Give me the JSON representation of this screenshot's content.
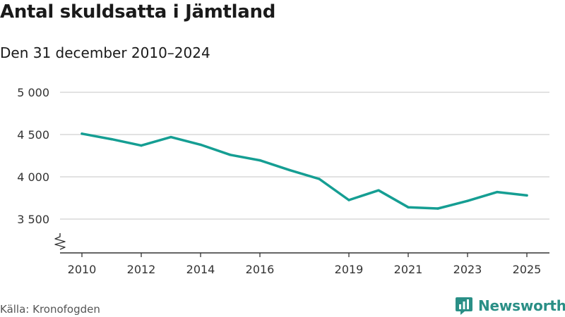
{
  "colors": {
    "line": "#159e93",
    "grid": "#d9d9d9",
    "axis": "#333333",
    "brand": "#2a8f86"
  },
  "chart_data": {
    "type": "line",
    "title": "Antal skuldsatta i Jämtland",
    "subtitle": "Den 31 december 2010–2024",
    "xlabel": "",
    "ylabel": "",
    "x": [
      2010,
      2011,
      2012,
      2013,
      2014,
      2015,
      2016,
      2017,
      2018,
      2019,
      2020,
      2021,
      2022,
      2023,
      2024,
      2025
    ],
    "values": [
      4510,
      4445,
      4370,
      4470,
      4380,
      4260,
      4195,
      4080,
      3975,
      3725,
      3840,
      3640,
      3625,
      3715,
      3820,
      3780
    ],
    "ylim": [
      3100,
      5000
    ],
    "xlim": [
      2010,
      2025
    ],
    "yticks": [
      3500,
      4000,
      4500,
      5000
    ],
    "ytick_labels": [
      "3 500",
      "4 000",
      "4 500",
      "5 000"
    ],
    "xticks": [
      2010,
      2012,
      2014,
      2016,
      2019,
      2021,
      2023,
      2025
    ],
    "xtick_labels": [
      "2010",
      "2012",
      "2014",
      "2016",
      "2019",
      "2021",
      "2023",
      "2025"
    ],
    "axis_break": true,
    "grid": true
  },
  "source": "Källa: Kronofogden",
  "brand": {
    "name": "Newsworthy",
    "icon": "newsworthy-logo-icon"
  }
}
